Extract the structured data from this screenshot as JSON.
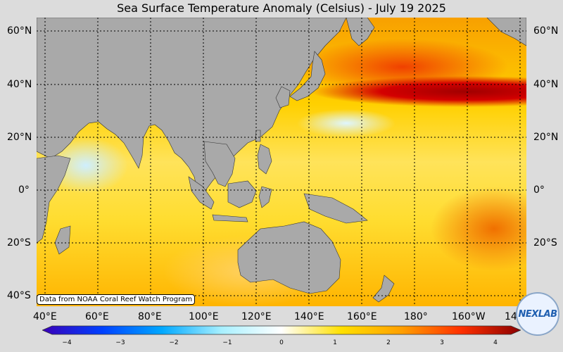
{
  "title": "Sea Surface Temperature Anomaly (Celsius) - July 19 2025",
  "lat_labels_left": [
    "60°N",
    "40°N",
    "20°N",
    "0°",
    "20°S",
    "40°S"
  ],
  "lat_labels_right": [
    "60°N",
    "40°N",
    "20°N",
    "0°",
    "20°S"
  ],
  "lon_labels": [
    "40°E",
    "60°E",
    "80°E",
    "100°E",
    "120°E",
    "140°E",
    "160°E",
    "180°",
    "160°W",
    "14"
  ],
  "colorbar": {
    "ticks": [
      "−4",
      "−3",
      "−2",
      "−1",
      "0",
      "1",
      "2",
      "3",
      "4"
    ],
    "min": -4,
    "max": 4,
    "colors": [
      "#3a00b8",
      "#0040ff",
      "#00a8ff",
      "#a8f0ff",
      "#ffffff",
      "#ffe000",
      "#ffa000",
      "#ff3000",
      "#8a0000"
    ]
  },
  "credit": "Data from NOAA Coral Reef Watch Program",
  "logo": "NEXLAB",
  "colors": {
    "land": "#a9a9a9",
    "background": "#dcdcdc"
  }
}
